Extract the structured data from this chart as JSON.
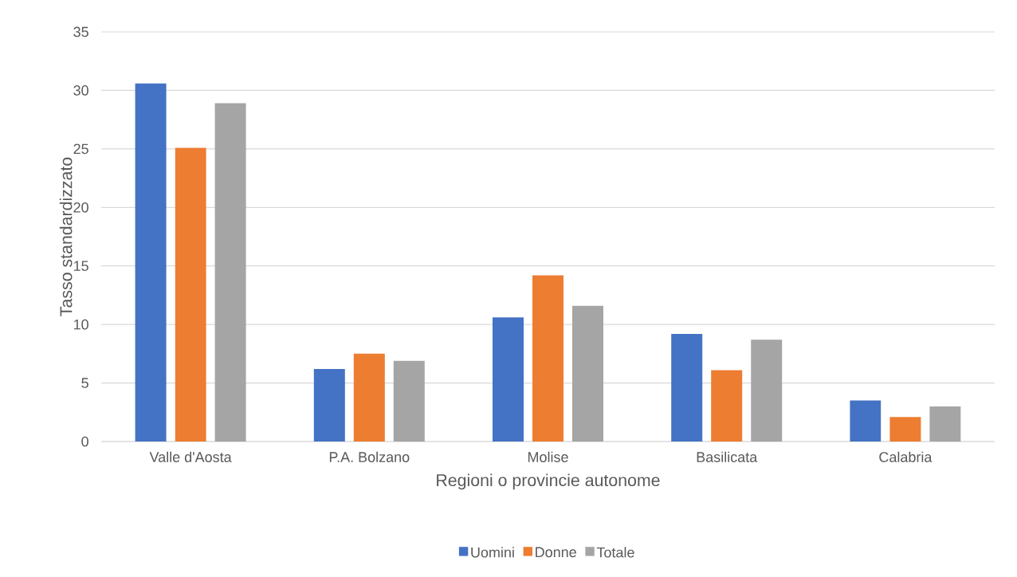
{
  "chart_data": {
    "type": "bar",
    "xlabel": "Regioni o provincie autonome",
    "ylabel": "Tasso standardizzato",
    "categories": [
      "Valle d'Aosta",
      "P.A. Bolzano",
      "Molise",
      "Basilicata",
      "Calabria"
    ],
    "series": [
      {
        "name": "Uomini",
        "color": "#4472c4",
        "values": [
          30.6,
          6.2,
          10.6,
          9.2,
          3.5
        ]
      },
      {
        "name": "Donne",
        "color": "#ed7d31",
        "values": [
          25.1,
          7.5,
          14.2,
          6.1,
          2.1
        ]
      },
      {
        "name": "Totale",
        "color": "#a5a5a5",
        "values": [
          28.9,
          6.9,
          11.6,
          8.7,
          3.0
        ]
      }
    ],
    "ylim": [
      0,
      35
    ],
    "yticks": [
      0,
      5,
      10,
      15,
      20,
      25,
      30,
      35
    ],
    "grid": "y",
    "legend": "bottom"
  }
}
